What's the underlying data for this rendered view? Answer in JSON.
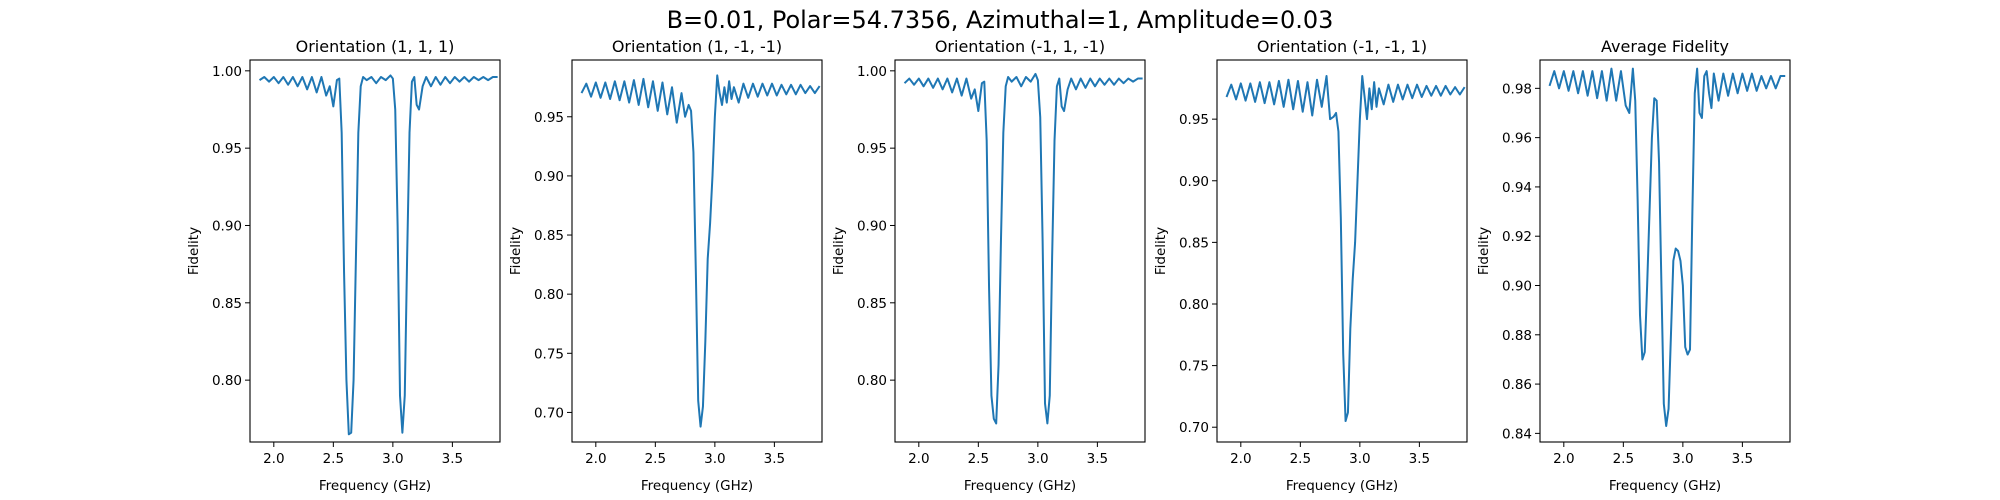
{
  "figure": {
    "suptitle": "B=0.01, Polar=54.7356, Azimuthal=1, Amplitude=0.03",
    "series_color": "#1f77b4"
  },
  "chart_data": [
    {
      "type": "line",
      "title": "Orientation (1, 1, 1)",
      "xlabel": "Frequency (GHz)",
      "ylabel": "Fidelity",
      "xlim": [
        1.8,
        3.9
      ],
      "ylim": [
        0.76,
        1.007
      ],
      "xticks": [
        "2.0",
        "2.5",
        "3.0",
        "3.5"
      ],
      "yticks": [
        "0.80",
        "0.85",
        "0.90",
        "0.95",
        "1.00"
      ],
      "grid": false,
      "x": [
        1.88,
        1.92,
        1.96,
        2.0,
        2.04,
        2.08,
        2.12,
        2.16,
        2.2,
        2.24,
        2.28,
        2.32,
        2.36,
        2.4,
        2.44,
        2.47,
        2.5,
        2.53,
        2.55,
        2.57,
        2.59,
        2.61,
        2.63,
        2.65,
        2.67,
        2.69,
        2.71,
        2.73,
        2.75,
        2.78,
        2.82,
        2.86,
        2.9,
        2.94,
        2.98,
        3.0,
        3.02,
        3.04,
        3.06,
        3.08,
        3.1,
        3.12,
        3.14,
        3.16,
        3.18,
        3.2,
        3.22,
        3.25,
        3.28,
        3.32,
        3.36,
        3.4,
        3.44,
        3.48,
        3.52,
        3.56,
        3.6,
        3.64,
        3.68,
        3.72,
        3.76,
        3.8,
        3.84,
        3.88
      ],
      "y": [
        0.994,
        0.996,
        0.993,
        0.996,
        0.992,
        0.996,
        0.991,
        0.996,
        0.99,
        0.996,
        0.988,
        0.996,
        0.986,
        0.996,
        0.984,
        0.99,
        0.977,
        0.994,
        0.995,
        0.96,
        0.87,
        0.8,
        0.765,
        0.766,
        0.8,
        0.88,
        0.96,
        0.99,
        0.996,
        0.994,
        0.996,
        0.992,
        0.996,
        0.994,
        0.997,
        0.995,
        0.975,
        0.9,
        0.79,
        0.766,
        0.79,
        0.88,
        0.96,
        0.993,
        0.996,
        0.978,
        0.975,
        0.99,
        0.996,
        0.99,
        0.996,
        0.991,
        0.996,
        0.992,
        0.996,
        0.993,
        0.996,
        0.993,
        0.996,
        0.994,
        0.996,
        0.994,
        0.996,
        0.996
      ]
    },
    {
      "type": "line",
      "title": "Orientation (1, -1, -1)",
      "xlabel": "Frequency (GHz)",
      "ylabel": "Fidelity",
      "xlim": [
        1.8,
        3.9
      ],
      "ylim": [
        0.675,
        0.998
      ],
      "xticks": [
        "2.0",
        "2.5",
        "3.0",
        "3.5"
      ],
      "yticks": [
        "0.70",
        "0.75",
        "0.80",
        "0.85",
        "0.90",
        "0.95"
      ],
      "grid": false,
      "x": [
        1.88,
        1.92,
        1.96,
        2.0,
        2.04,
        2.08,
        2.12,
        2.16,
        2.2,
        2.24,
        2.28,
        2.32,
        2.36,
        2.4,
        2.44,
        2.48,
        2.52,
        2.56,
        2.6,
        2.64,
        2.68,
        2.72,
        2.75,
        2.78,
        2.8,
        2.82,
        2.84,
        2.86,
        2.88,
        2.9,
        2.92,
        2.94,
        2.96,
        2.98,
        3.0,
        3.02,
        3.04,
        3.06,
        3.08,
        3.1,
        3.12,
        3.14,
        3.16,
        3.2,
        3.24,
        3.28,
        3.32,
        3.36,
        3.4,
        3.44,
        3.48,
        3.52,
        3.56,
        3.6,
        3.64,
        3.68,
        3.72,
        3.76,
        3.8,
        3.84,
        3.88
      ],
      "y": [
        0.97,
        0.978,
        0.967,
        0.979,
        0.966,
        0.979,
        0.965,
        0.98,
        0.964,
        0.98,
        0.962,
        0.981,
        0.96,
        0.982,
        0.958,
        0.98,
        0.955,
        0.979,
        0.952,
        0.975,
        0.945,
        0.97,
        0.95,
        0.96,
        0.955,
        0.92,
        0.82,
        0.71,
        0.688,
        0.705,
        0.76,
        0.83,
        0.86,
        0.9,
        0.95,
        0.985,
        0.97,
        0.96,
        0.975,
        0.962,
        0.98,
        0.965,
        0.975,
        0.962,
        0.978,
        0.966,
        0.978,
        0.967,
        0.978,
        0.968,
        0.978,
        0.968,
        0.977,
        0.969,
        0.977,
        0.969,
        0.977,
        0.97,
        0.976,
        0.97,
        0.976
      ]
    },
    {
      "type": "line",
      "title": "Orientation (-1, 1, -1)",
      "xlabel": "Frequency (GHz)",
      "ylabel": "Fidelity",
      "xlim": [
        1.8,
        3.9
      ],
      "ylim": [
        0.76,
        1.007
      ],
      "xticks": [
        "2.0",
        "2.5",
        "3.0",
        "3.5"
      ],
      "yticks": [
        "0.80",
        "0.85",
        "0.90",
        "0.95",
        "1.00"
      ],
      "grid": false,
      "x": [
        1.88,
        1.92,
        1.96,
        2.0,
        2.04,
        2.08,
        2.12,
        2.16,
        2.2,
        2.24,
        2.28,
        2.32,
        2.36,
        2.4,
        2.44,
        2.47,
        2.5,
        2.53,
        2.55,
        2.57,
        2.59,
        2.61,
        2.63,
        2.65,
        2.67,
        2.69,
        2.71,
        2.73,
        2.75,
        2.78,
        2.82,
        2.86,
        2.9,
        2.94,
        2.98,
        3.0,
        3.02,
        3.04,
        3.06,
        3.08,
        3.1,
        3.12,
        3.14,
        3.16,
        3.18,
        3.2,
        3.22,
        3.25,
        3.28,
        3.32,
        3.36,
        3.4,
        3.44,
        3.48,
        3.52,
        3.56,
        3.6,
        3.64,
        3.68,
        3.72,
        3.76,
        3.8,
        3.84,
        3.88
      ],
      "y": [
        0.992,
        0.995,
        0.991,
        0.995,
        0.99,
        0.995,
        0.989,
        0.995,
        0.988,
        0.995,
        0.986,
        0.995,
        0.984,
        0.995,
        0.982,
        0.988,
        0.974,
        0.992,
        0.993,
        0.955,
        0.86,
        0.79,
        0.775,
        0.772,
        0.81,
        0.89,
        0.96,
        0.99,
        0.996,
        0.993,
        0.996,
        0.99,
        0.996,
        0.993,
        0.998,
        0.994,
        0.97,
        0.89,
        0.785,
        0.772,
        0.79,
        0.88,
        0.955,
        0.99,
        0.995,
        0.977,
        0.974,
        0.988,
        0.995,
        0.988,
        0.995,
        0.989,
        0.995,
        0.99,
        0.995,
        0.991,
        0.995,
        0.991,
        0.995,
        0.992,
        0.995,
        0.993,
        0.995,
        0.995
      ]
    },
    {
      "type": "line",
      "title": "Orientation (-1, -1, 1)",
      "xlabel": "Frequency (GHz)",
      "ylabel": "Fidelity",
      "xlim": [
        1.8,
        3.9
      ],
      "ylim": [
        0.688,
        0.998
      ],
      "xticks": [
        "2.0",
        "2.5",
        "3.0",
        "3.5"
      ],
      "yticks": [
        "0.70",
        "0.75",
        "0.80",
        "0.85",
        "0.90",
        "0.95"
      ],
      "grid": false,
      "x": [
        1.88,
        1.92,
        1.96,
        2.0,
        2.04,
        2.08,
        2.12,
        2.16,
        2.2,
        2.24,
        2.28,
        2.32,
        2.36,
        2.4,
        2.44,
        2.48,
        2.52,
        2.56,
        2.6,
        2.64,
        2.68,
        2.72,
        2.75,
        2.78,
        2.8,
        2.82,
        2.84,
        2.86,
        2.88,
        2.9,
        2.92,
        2.94,
        2.96,
        2.98,
        3.0,
        3.02,
        3.04,
        3.06,
        3.08,
        3.1,
        3.12,
        3.14,
        3.16,
        3.2,
        3.24,
        3.28,
        3.32,
        3.36,
        3.4,
        3.44,
        3.48,
        3.52,
        3.56,
        3.6,
        3.64,
        3.68,
        3.72,
        3.76,
        3.8,
        3.84,
        3.88
      ],
      "y": [
        0.968,
        0.978,
        0.966,
        0.979,
        0.965,
        0.979,
        0.964,
        0.98,
        0.963,
        0.98,
        0.962,
        0.981,
        0.96,
        0.982,
        0.958,
        0.981,
        0.956,
        0.98,
        0.953,
        0.982,
        0.96,
        0.985,
        0.95,
        0.952,
        0.955,
        0.94,
        0.87,
        0.76,
        0.705,
        0.712,
        0.78,
        0.82,
        0.85,
        0.9,
        0.95,
        0.985,
        0.968,
        0.95,
        0.975,
        0.958,
        0.98,
        0.96,
        0.975,
        0.962,
        0.978,
        0.964,
        0.978,
        0.966,
        0.978,
        0.967,
        0.978,
        0.968,
        0.977,
        0.969,
        0.977,
        0.969,
        0.977,
        0.97,
        0.976,
        0.97,
        0.976
      ]
    },
    {
      "type": "line",
      "title": "Average Fidelity",
      "xlabel": "Frequency (GHz)",
      "ylabel": "Fidelity",
      "xlim": [
        1.8,
        3.9
      ],
      "ylim": [
        0.8365,
        0.9915
      ],
      "xticks": [
        "2.0",
        "2.5",
        "3.0",
        "3.5"
      ],
      "yticks": [
        "0.84",
        "0.86",
        "0.88",
        "0.90",
        "0.92",
        "0.94",
        "0.96",
        "0.98"
      ],
      "grid": false,
      "x": [
        1.88,
        1.92,
        1.96,
        2.0,
        2.04,
        2.08,
        2.12,
        2.16,
        2.2,
        2.24,
        2.28,
        2.32,
        2.36,
        2.4,
        2.44,
        2.48,
        2.52,
        2.55,
        2.58,
        2.6,
        2.62,
        2.64,
        2.66,
        2.68,
        2.7,
        2.72,
        2.74,
        2.76,
        2.78,
        2.8,
        2.82,
        2.84,
        2.86,
        2.88,
        2.9,
        2.92,
        2.94,
        2.96,
        2.98,
        3.0,
        3.02,
        3.04,
        3.06,
        3.08,
        3.1,
        3.12,
        3.14,
        3.16,
        3.18,
        3.2,
        3.22,
        3.24,
        3.26,
        3.3,
        3.34,
        3.38,
        3.42,
        3.46,
        3.5,
        3.54,
        3.58,
        3.62,
        3.66,
        3.7,
        3.74,
        3.78,
        3.82,
        3.86
      ],
      "y": [
        0.981,
        0.987,
        0.98,
        0.987,
        0.979,
        0.987,
        0.978,
        0.987,
        0.977,
        0.987,
        0.976,
        0.987,
        0.975,
        0.988,
        0.975,
        0.987,
        0.973,
        0.97,
        0.988,
        0.975,
        0.935,
        0.888,
        0.87,
        0.873,
        0.9,
        0.93,
        0.96,
        0.976,
        0.975,
        0.95,
        0.9,
        0.852,
        0.843,
        0.85,
        0.88,
        0.91,
        0.915,
        0.914,
        0.91,
        0.9,
        0.875,
        0.872,
        0.874,
        0.93,
        0.978,
        0.988,
        0.97,
        0.968,
        0.985,
        0.987,
        0.978,
        0.972,
        0.986,
        0.975,
        0.986,
        0.977,
        0.986,
        0.978,
        0.986,
        0.979,
        0.986,
        0.979,
        0.985,
        0.98,
        0.985,
        0.98,
        0.985,
        0.985
      ]
    }
  ]
}
